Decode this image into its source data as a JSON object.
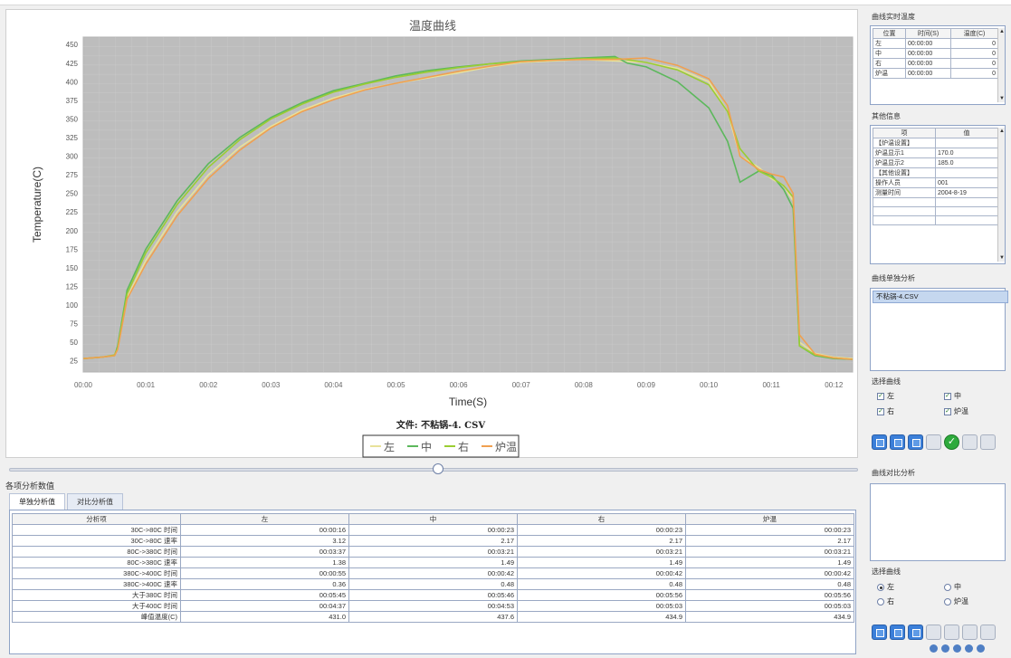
{
  "chart": {
    "title": "温度曲线",
    "file_caption": "文件: 不粘锅-4. CSV",
    "legend": [
      "左",
      "中",
      "右",
      "炉温"
    ]
  },
  "chart_data": {
    "type": "line",
    "xlabel": "Time(S)",
    "ylabel": "Temperature(C)",
    "xlim": [
      0,
      12.3
    ],
    "ylim": [
      10,
      460
    ],
    "x_ticks": [
      "00:00",
      "00:01",
      "00:02",
      "00:03",
      "00:04",
      "00:05",
      "00:06",
      "00:07",
      "00:08",
      "00:09",
      "00:10",
      "00:11",
      "00:12"
    ],
    "y_ticks": [
      25,
      50,
      75,
      100,
      125,
      150,
      175,
      200,
      225,
      250,
      275,
      300,
      325,
      350,
      375,
      400,
      425,
      450
    ],
    "grid": true,
    "series": [
      {
        "name": "左",
        "color": "#e8e29a",
        "x": [
          0,
          0.3,
          0.5,
          0.55,
          0.7,
          1,
          1.5,
          2,
          2.5,
          3,
          3.5,
          4,
          4.5,
          5,
          5.5,
          6,
          6.5,
          7,
          7.5,
          8,
          8.5,
          9,
          9.5,
          10,
          10.3,
          10.5,
          10.8,
          11,
          11.2,
          11.35,
          11.45,
          11.7,
          12,
          12.3
        ],
        "y": [
          28,
          30,
          32,
          40,
          110,
          160,
          225,
          275,
          312,
          340,
          362,
          378,
          390,
          398,
          405,
          412,
          420,
          426,
          428,
          430,
          428,
          426,
          418,
          400,
          360,
          300,
          285,
          270,
          260,
          240,
          50,
          35,
          30,
          28
        ]
      },
      {
        "name": "中",
        "color": "#5cb85c",
        "x": [
          0,
          0.3,
          0.5,
          0.55,
          0.7,
          1,
          1.5,
          2,
          2.5,
          3,
          3.5,
          4,
          4.5,
          5,
          5.5,
          6,
          6.5,
          7,
          7.5,
          8,
          8.5,
          8.7,
          9,
          9.5,
          10,
          10.3,
          10.5,
          10.8,
          11,
          11.2,
          11.35,
          11.45,
          11.7,
          12,
          12.3
        ],
        "y": [
          28,
          30,
          32,
          45,
          120,
          175,
          240,
          290,
          325,
          352,
          372,
          388,
          398,
          408,
          415,
          420,
          424,
          428,
          430,
          432,
          434,
          425,
          420,
          400,
          365,
          320,
          265,
          280,
          275,
          255,
          230,
          45,
          32,
          28,
          27
        ]
      },
      {
        "name": "右",
        "color": "#9acd32",
        "x": [
          0,
          0.3,
          0.5,
          0.55,
          0.7,
          1,
          1.5,
          2,
          2.5,
          3,
          3.5,
          4,
          4.5,
          5,
          5.5,
          6,
          6.5,
          7,
          7.5,
          8,
          8.5,
          9,
          9.5,
          10,
          10.3,
          10.5,
          10.8,
          11,
          11.2,
          11.35,
          11.45,
          11.7,
          12,
          12.3
        ],
        "y": [
          28,
          30,
          33,
          42,
          115,
          170,
          235,
          285,
          322,
          350,
          370,
          386,
          397,
          406,
          413,
          419,
          424,
          427,
          429,
          431,
          432,
          426,
          416,
          396,
          360,
          310,
          280,
          272,
          260,
          245,
          45,
          33,
          29,
          27
        ]
      },
      {
        "name": "炉温",
        "color": "#f0a050",
        "x": [
          0,
          0.3,
          0.5,
          0.55,
          0.7,
          1,
          1.5,
          2,
          2.5,
          3,
          3.5,
          4,
          4.5,
          5,
          5.5,
          6,
          6.5,
          7,
          7.5,
          8,
          8.5,
          9,
          9.5,
          10,
          10.3,
          10.5,
          10.8,
          11,
          11.2,
          11.35,
          11.45,
          11.7,
          12,
          12.3
        ],
        "y": [
          28,
          30,
          32,
          40,
          108,
          155,
          220,
          270,
          308,
          338,
          360,
          376,
          389,
          398,
          406,
          414,
          421,
          427,
          429,
          430,
          430,
          432,
          422,
          404,
          368,
          300,
          282,
          276,
          272,
          250,
          60,
          34,
          29,
          27
        ]
      }
    ]
  },
  "analysis": {
    "title": "各项分析数值",
    "tabs": [
      "单独分析值",
      "对比分析值"
    ],
    "headers": [
      "分析项",
      "左",
      "中",
      "右",
      "炉温"
    ],
    "rows": [
      [
        "30C->80C 时间",
        "00:00:16",
        "00:00:23",
        "00:00:23",
        "00:00:23"
      ],
      [
        "30C->80C 速率",
        "3.12",
        "2.17",
        "2.17",
        "2.17"
      ],
      [
        "80C->380C 时间",
        "00:03:37",
        "00:03:21",
        "00:03:21",
        "00:03:21"
      ],
      [
        "80C->380C 速率",
        "1.38",
        "1.49",
        "1.49",
        "1.49"
      ],
      [
        "380C->400C 时间",
        "00:00:55",
        "00:00:42",
        "00:00:42",
        "00:00:42"
      ],
      [
        "380C->400C 速率",
        "0.36",
        "0.48",
        "0.48",
        "0.48"
      ],
      [
        "大于380C 时间",
        "00:05:45",
        "00:05:46",
        "00:05:56",
        "00:05:56"
      ],
      [
        "大于400C 时间",
        "00:04:37",
        "00:04:53",
        "00:05:03",
        "00:05:03"
      ],
      [
        "峰值温度(C)",
        "431.0",
        "437.6",
        "434.9",
        "434.9"
      ]
    ]
  },
  "realtime": {
    "title": "曲线实时温度",
    "headers": [
      "位置",
      "时间(S)",
      "温度(C)"
    ],
    "rows": [
      [
        "左",
        "00:00:00",
        "0"
      ],
      [
        "中",
        "00:00:00",
        "0"
      ],
      [
        "右",
        "00:00:00",
        "0"
      ],
      [
        "炉温",
        "00:00:00",
        "0"
      ]
    ]
  },
  "other_info": {
    "title": "其他信息",
    "headers": [
      "项",
      "值"
    ],
    "rows": [
      [
        "【炉温设置】",
        ""
      ],
      [
        "炉温显示1",
        "170.0"
      ],
      [
        "炉温显示2",
        "185.0"
      ],
      [
        "【其他设置】",
        ""
      ],
      [
        "操作人员",
        "001"
      ],
      [
        "测量时间",
        "2004-8-19"
      ],
      [
        "",
        ""
      ],
      [
        "",
        ""
      ],
      [
        "",
        ""
      ]
    ]
  },
  "single_analysis": {
    "title": "曲线单独分析",
    "file": "不粘锅-4.CSV",
    "select_title": "选择曲线",
    "checks": [
      {
        "label": "左",
        "checked": true
      },
      {
        "label": "中",
        "checked": true
      },
      {
        "label": "右",
        "checked": true
      },
      {
        "label": "炉温",
        "checked": true
      }
    ]
  },
  "compare_analysis": {
    "title": "曲线对比分析",
    "select_title": "选择曲线",
    "radios": [
      {
        "label": "左",
        "checked": true
      },
      {
        "label": "中",
        "checked": false
      },
      {
        "label": "右",
        "checked": false
      },
      {
        "label": "炉温",
        "checked": false
      }
    ]
  }
}
